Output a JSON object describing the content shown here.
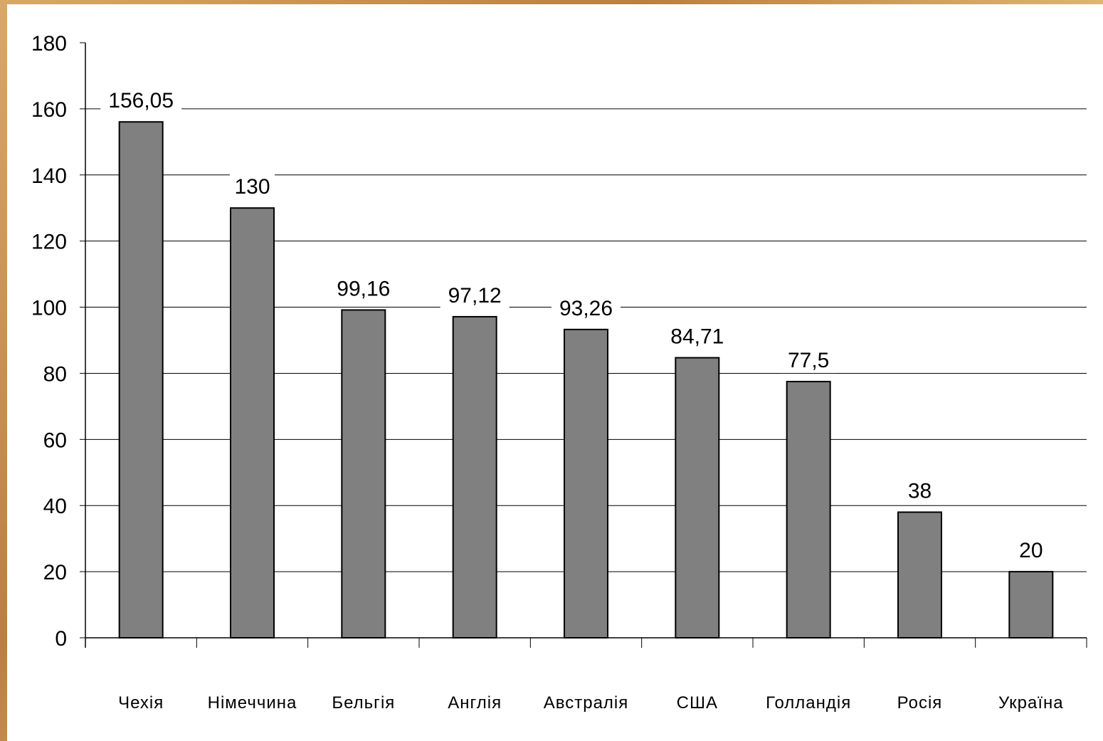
{
  "chart_data": {
    "type": "bar",
    "categories": [
      "Чехія",
      "Німеччина",
      "Бельгія",
      "Англія",
      "Австралія",
      "США",
      "Голландія",
      "Росія",
      "Україна"
    ],
    "values": [
      156.05,
      130,
      99.16,
      97.12,
      93.26,
      84.71,
      77.5,
      38,
      20
    ],
    "value_labels": [
      "156,05",
      "130",
      "99,16",
      "97,12",
      "93,26",
      "84,71",
      "77,5",
      "38",
      "20"
    ],
    "y_ticks": [
      "0",
      "20",
      "40",
      "60",
      "80",
      "100",
      "120",
      "140",
      "160",
      "180"
    ],
    "ylim": [
      0,
      180
    ],
    "grid": true,
    "legend": false,
    "bar_color": "#808080",
    "title": "",
    "xlabel": "",
    "ylabel": ""
  }
}
